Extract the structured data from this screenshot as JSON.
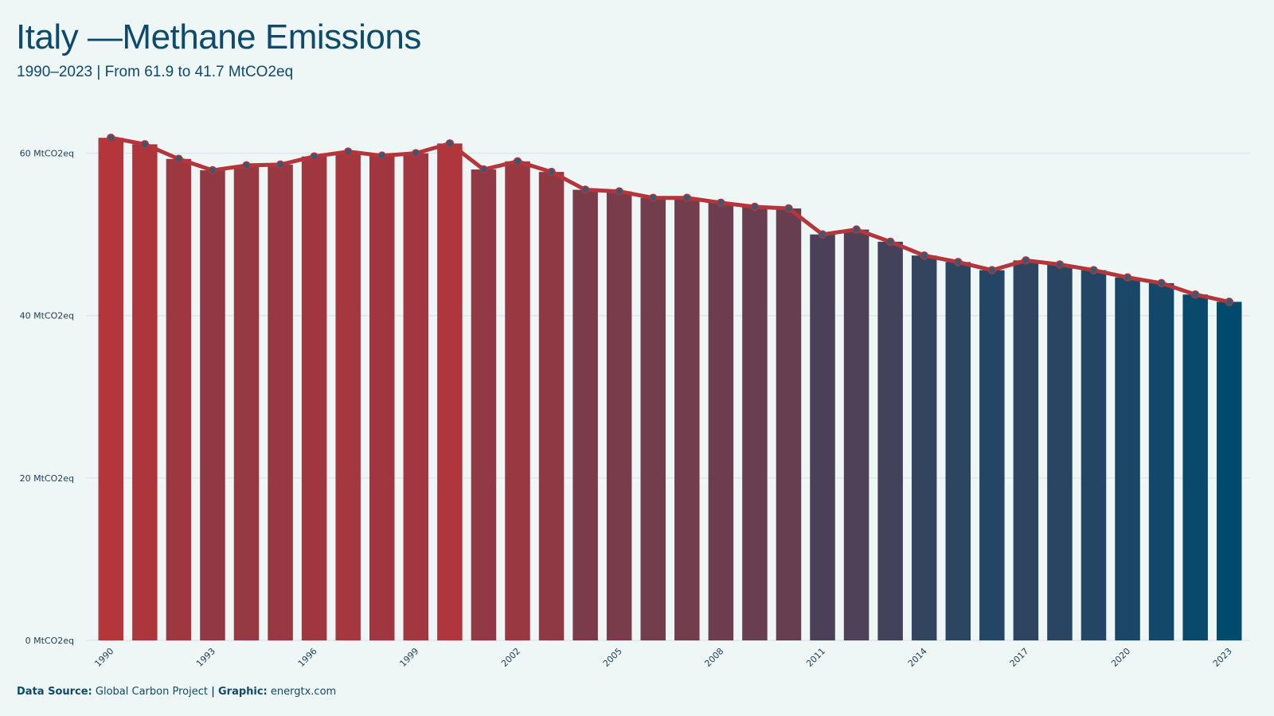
{
  "header": {
    "title": "Italy —Methane Emissions",
    "subtitle": "1990–2023 | From 61.9 to 41.7 MtCO2eq"
  },
  "footer": {
    "source_label": "Data Source:",
    "source_value": "Global Carbon Project",
    "separator": "|",
    "graphic_label": "Graphic:",
    "graphic_value": "energtx.com"
  },
  "colors": {
    "background": "#eff6f6",
    "bar_start": "#b4353a",
    "bar_end": "#004a6e",
    "line": "#b4353a",
    "marker": "#3b5872",
    "grid": "#d5e2e8",
    "bar_shadow": "#d5dde2",
    "text": "#0d4b6c"
  },
  "chart_data": {
    "type": "bar",
    "unit": "MtCO2eq",
    "x": [
      1990,
      1991,
      1992,
      1993,
      1994,
      1995,
      1996,
      1997,
      1998,
      1999,
      2000,
      2001,
      2002,
      2003,
      2004,
      2005,
      2006,
      2007,
      2008,
      2009,
      2010,
      2011,
      2012,
      2013,
      2014,
      2015,
      2016,
      2017,
      2018,
      2019,
      2020,
      2021,
      2022,
      2023
    ],
    "values": [
      61.9,
      61.1,
      59.3,
      57.9,
      58.5,
      58.6,
      59.6,
      60.2,
      59.7,
      60.0,
      61.2,
      58.0,
      59.0,
      57.7,
      55.5,
      55.3,
      54.5,
      54.5,
      53.9,
      53.4,
      53.2,
      50.0,
      50.6,
      49.1,
      47.4,
      46.6,
      45.6,
      46.8,
      46.3,
      45.6,
      44.7,
      44.0,
      42.6,
      41.7
    ],
    "line_series": [
      61.9,
      61.1,
      59.3,
      57.9,
      58.5,
      58.6,
      59.6,
      60.2,
      59.7,
      60.0,
      61.2,
      58.0,
      59.0,
      57.7,
      55.5,
      55.3,
      54.5,
      54.5,
      53.9,
      53.4,
      53.2,
      50.0,
      50.6,
      49.1,
      47.4,
      46.6,
      45.6,
      46.8,
      46.3,
      45.6,
      44.7,
      44.0,
      42.6,
      41.7
    ],
    "ylim": [
      0,
      63
    ],
    "yticks": [
      0,
      20,
      40,
      60
    ],
    "ytick_labels": [
      "0 MtCO2eq",
      "20 MtCO2eq",
      "40 MtCO2eq",
      "60 MtCO2eq"
    ],
    "xtick_labels": [
      "1990",
      "1993",
      "1996",
      "1999",
      "2002",
      "2005",
      "2008",
      "2011",
      "2014",
      "2017",
      "2020",
      "2023"
    ],
    "grid": true,
    "legend": "none"
  }
}
